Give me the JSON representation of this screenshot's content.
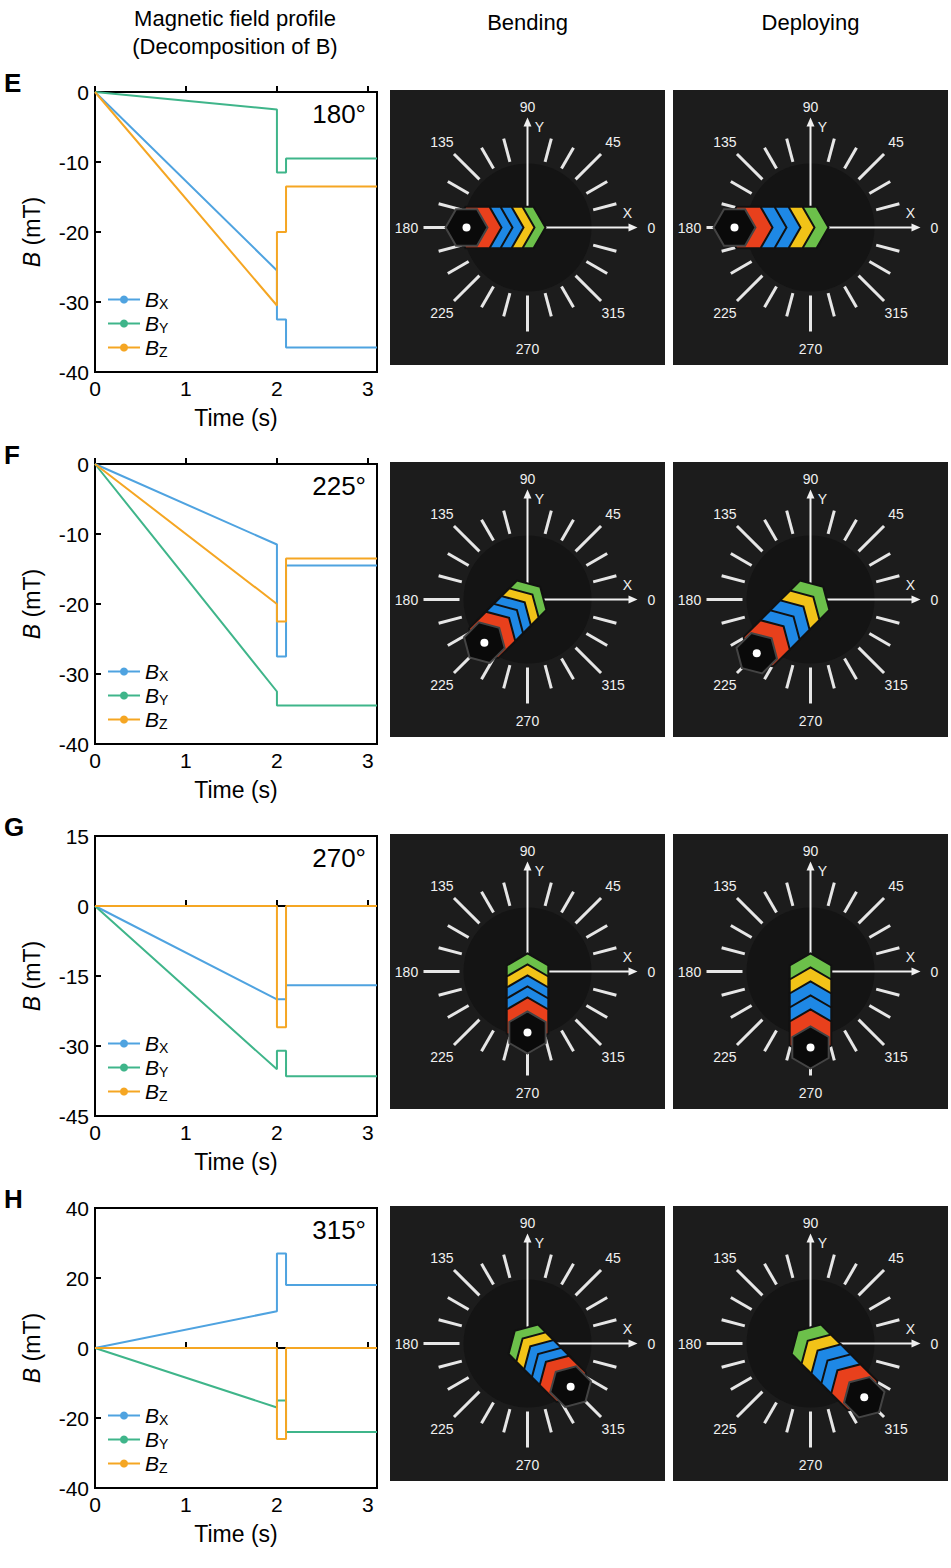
{
  "headers": {
    "profile": [
      "Magnetic field profile",
      "(Decomposition of B)"
    ],
    "bending": "Bending",
    "deploying": "Deploying"
  },
  "dial": {
    "angles": [
      0,
      45,
      90,
      135,
      180,
      225,
      270,
      315
    ],
    "x_axis": "X",
    "y_axis": "Y"
  },
  "chart_data": [
    {
      "panel": "E",
      "type": "line",
      "annotation": "180°",
      "x_label": "Time (s)",
      "y_label": "B (mT)",
      "xlim": [
        0,
        3.1
      ],
      "xticks": [
        0,
        1,
        2,
        3
      ],
      "ylim": [
        -40,
        0
      ],
      "yticks": [
        -40,
        -30,
        -20,
        -10,
        0
      ],
      "grid": false,
      "legend": "lower left",
      "series": [
        {
          "name": "BX",
          "color": "#4fa3e0",
          "x": [
            0,
            2,
            2,
            2.1,
            2.1,
            3.1
          ],
          "values": [
            0,
            -25.5,
            -32.5,
            -32.5,
            -36.5,
            -36.5
          ]
        },
        {
          "name": "BY",
          "color": "#3fb58a",
          "x": [
            0,
            2,
            2,
            2.1,
            2.1,
            3.1
          ],
          "values": [
            0,
            -2.5,
            -11.5,
            -11.5,
            -9.5,
            -9.5
          ]
        },
        {
          "name": "BZ",
          "color": "#f5a623",
          "x": [
            0,
            2,
            2,
            2.1,
            2.1,
            3.1
          ],
          "values": [
            0,
            -30.5,
            -20,
            -20,
            -13.5,
            -13.5
          ]
        }
      ]
    },
    {
      "panel": "F",
      "type": "line",
      "annotation": "225°",
      "x_label": "Time (s)",
      "y_label": "B (mT)",
      "xlim": [
        0,
        3.1
      ],
      "xticks": [
        0,
        1,
        2,
        3
      ],
      "ylim": [
        -40,
        0
      ],
      "yticks": [
        -40,
        -30,
        -20,
        -10,
        0
      ],
      "grid": false,
      "legend": "lower left",
      "series": [
        {
          "name": "BX",
          "color": "#4fa3e0",
          "x": [
            0,
            2,
            2,
            2.1,
            2.1,
            3.1
          ],
          "values": [
            0,
            -11.5,
            -27.5,
            -27.5,
            -14.5,
            -14.5
          ]
        },
        {
          "name": "BY",
          "color": "#3fb58a",
          "x": [
            0,
            2,
            2,
            3.1
          ],
          "values": [
            0,
            -32.5,
            -34.5,
            -34.5
          ]
        },
        {
          "name": "BZ",
          "color": "#f5a623",
          "x": [
            0,
            2,
            2,
            2.1,
            2.1,
            3.1
          ],
          "values": [
            0,
            -20,
            -22.5,
            -22.5,
            -13.5,
            -13.5
          ]
        }
      ]
    },
    {
      "panel": "G",
      "type": "line",
      "annotation": "270°",
      "x_label": "Time (s)",
      "y_label": "B (mT)",
      "xlim": [
        0,
        3.1
      ],
      "xticks": [
        0,
        1,
        2,
        3
      ],
      "ylim": [
        -45,
        15
      ],
      "yticks": [
        -45,
        -30,
        -15,
        0,
        15
      ],
      "grid": false,
      "legend": "lower left",
      "series": [
        {
          "name": "BX",
          "color": "#4fa3e0",
          "x": [
            0,
            2,
            2.1,
            2.1,
            3.1
          ],
          "values": [
            0,
            -20,
            -20,
            -17,
            -17
          ]
        },
        {
          "name": "BY",
          "color": "#3fb58a",
          "x": [
            0,
            2,
            2,
            2.1,
            2.1,
            3.1
          ],
          "values": [
            0,
            -35,
            -31,
            -31,
            -36.5,
            -36.5
          ]
        },
        {
          "name": "BZ",
          "color": "#f5a623",
          "x": [
            0,
            2,
            2,
            2.1,
            2.1,
            3.1
          ],
          "values": [
            0,
            0,
            -26,
            -26,
            0,
            0
          ]
        }
      ]
    },
    {
      "panel": "H",
      "type": "line",
      "annotation": "315°",
      "x_label": "Time (s)",
      "y_label": "B (mT)",
      "xlim": [
        0,
        3.1
      ],
      "xticks": [
        0,
        1,
        2,
        3
      ],
      "ylim": [
        -40,
        40
      ],
      "yticks": [
        -40,
        -20,
        0,
        20,
        40
      ],
      "grid": false,
      "legend": "lower left",
      "series": [
        {
          "name": "BX",
          "color": "#4fa3e0",
          "x": [
            0,
            2,
            2,
            2.1,
            2.1,
            3.1
          ],
          "values": [
            0,
            10.5,
            27,
            27,
            18,
            18
          ]
        },
        {
          "name": "BY",
          "color": "#3fb58a",
          "x": [
            0,
            2,
            2,
            2.1,
            2.1,
            3.1
          ],
          "values": [
            0,
            -17,
            -15,
            -15,
            -24,
            -24
          ]
        },
        {
          "name": "BZ",
          "color": "#f5a623",
          "x": [
            0,
            2,
            2,
            2.1,
            2.1,
            3.1
          ],
          "values": [
            0,
            0,
            -26,
            -26,
            0,
            0
          ]
        }
      ]
    }
  ]
}
